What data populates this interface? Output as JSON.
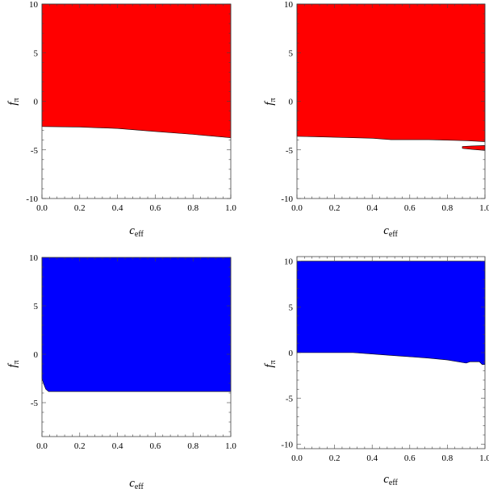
{
  "chart_data": [
    {
      "type": "area",
      "xlabel": "c",
      "xlabel_sub": "eff",
      "ylabel": "f",
      "ylabel_sub": "π",
      "xlim": [
        0,
        1
      ],
      "ylim": [
        -10,
        10
      ],
      "xticks": [
        0.0,
        0.2,
        0.4,
        0.6,
        0.8,
        1.0
      ],
      "xtick_labels": [
        "0.0",
        "0.2",
        "0.4",
        "0.6",
        "0.8",
        "1.0"
      ],
      "yticks": [
        -10,
        -5,
        0,
        5,
        10
      ],
      "ytick_labels": [
        "-10",
        "-5",
        "0",
        "5",
        "10"
      ],
      "fill_color": "#ff0000",
      "regions": [
        {
          "upper": [
            [
              0,
              10
            ],
            [
              1,
              10
            ]
          ],
          "lower": [
            [
              0,
              -2.6
            ],
            [
              0.2,
              -2.65
            ],
            [
              0.4,
              -2.8
            ],
            [
              0.6,
              -3.1
            ],
            [
              0.8,
              -3.4
            ],
            [
              1.0,
              -3.75
            ]
          ]
        }
      ]
    },
    {
      "type": "area",
      "xlabel": "c",
      "xlabel_sub": "eff",
      "ylabel": "f",
      "ylabel_sub": "π",
      "xlim": [
        0,
        1
      ],
      "ylim": [
        -10,
        10
      ],
      "xticks": [
        0.0,
        0.2,
        0.4,
        0.6,
        0.8,
        1.0
      ],
      "xtick_labels": [
        "0.0",
        "0.2",
        "0.4",
        "0.6",
        "0.8",
        "1.0"
      ],
      "yticks": [
        -10,
        -5,
        0,
        5,
        10
      ],
      "ytick_labels": [
        "-10",
        "-5",
        "0",
        "5",
        "10"
      ],
      "fill_color": "#ff0000",
      "regions": [
        {
          "upper": [
            [
              0,
              10
            ],
            [
              1,
              10
            ]
          ],
          "lower": [
            [
              0,
              -3.6
            ],
            [
              0.2,
              -3.7
            ],
            [
              0.4,
              -3.8
            ],
            [
              0.5,
              -3.95
            ],
            [
              0.7,
              -3.95
            ],
            [
              0.9,
              -4.05
            ],
            [
              1.0,
              -4.15
            ]
          ]
        },
        {
          "upper": [
            [
              0.88,
              -4.65
            ],
            [
              0.93,
              -4.6
            ],
            [
              1.0,
              -4.55
            ]
          ],
          "lower": [
            [
              0.88,
              -4.85
            ],
            [
              0.93,
              -4.95
            ],
            [
              1.0,
              -5.05
            ]
          ]
        }
      ]
    },
    {
      "type": "area",
      "xlabel": "c",
      "xlabel_sub": "eff",
      "ylabel": "f",
      "ylabel_sub": "π",
      "xlim": [
        0,
        1
      ],
      "ylim": [
        -8.5,
        10
      ],
      "xticks": [
        0.0,
        0.2,
        0.4,
        0.6,
        0.8,
        1.0
      ],
      "xtick_labels": [
        "0.0",
        "0.2",
        "0.4",
        "0.6",
        "0.8",
        "1.0"
      ],
      "yticks": [
        -5,
        0,
        5,
        10
      ],
      "ytick_labels": [
        "-5",
        "0",
        "5",
        "10"
      ],
      "fill_color": "#0000ff",
      "regions": [
        {
          "upper": [
            [
              0,
              10
            ],
            [
              1,
              10
            ]
          ],
          "lower": [
            [
              0,
              -2.5
            ],
            [
              0.01,
              -3.1
            ],
            [
              0.02,
              -3.6
            ],
            [
              0.035,
              -3.85
            ],
            [
              0.2,
              -3.85
            ],
            [
              1.0,
              -3.85
            ]
          ]
        }
      ]
    },
    {
      "type": "area",
      "xlabel": "c",
      "xlabel_sub": "eff",
      "ylabel": "f",
      "ylabel_sub": "π",
      "xlim": [
        0,
        1
      ],
      "ylim": [
        -10.5,
        10.5
      ],
      "xticks": [
        0.0,
        0.2,
        0.4,
        0.6,
        0.8,
        1.0
      ],
      "xtick_labels": [
        "0.0",
        "0.2",
        "0.4",
        "0.6",
        "0.8",
        "1.0"
      ],
      "yticks": [
        -10,
        -5,
        0,
        5,
        10
      ],
      "ytick_labels": [
        "-10",
        "-5",
        "0",
        "5",
        "10"
      ],
      "fill_color": "#0000ff",
      "regions": [
        {
          "upper": [
            [
              0,
              10
            ],
            [
              1,
              10
            ]
          ],
          "lower": [
            [
              0,
              0
            ],
            [
              0.3,
              0
            ],
            [
              0.4,
              -0.15
            ],
            [
              0.5,
              -0.3
            ],
            [
              0.6,
              -0.45
            ],
            [
              0.7,
              -0.6
            ],
            [
              0.8,
              -0.8
            ],
            [
              0.9,
              -1.15
            ],
            [
              0.92,
              -1.0
            ],
            [
              0.97,
              -1.0
            ],
            [
              0.985,
              -1.3
            ],
            [
              1.0,
              -1.3
            ]
          ]
        }
      ]
    }
  ]
}
